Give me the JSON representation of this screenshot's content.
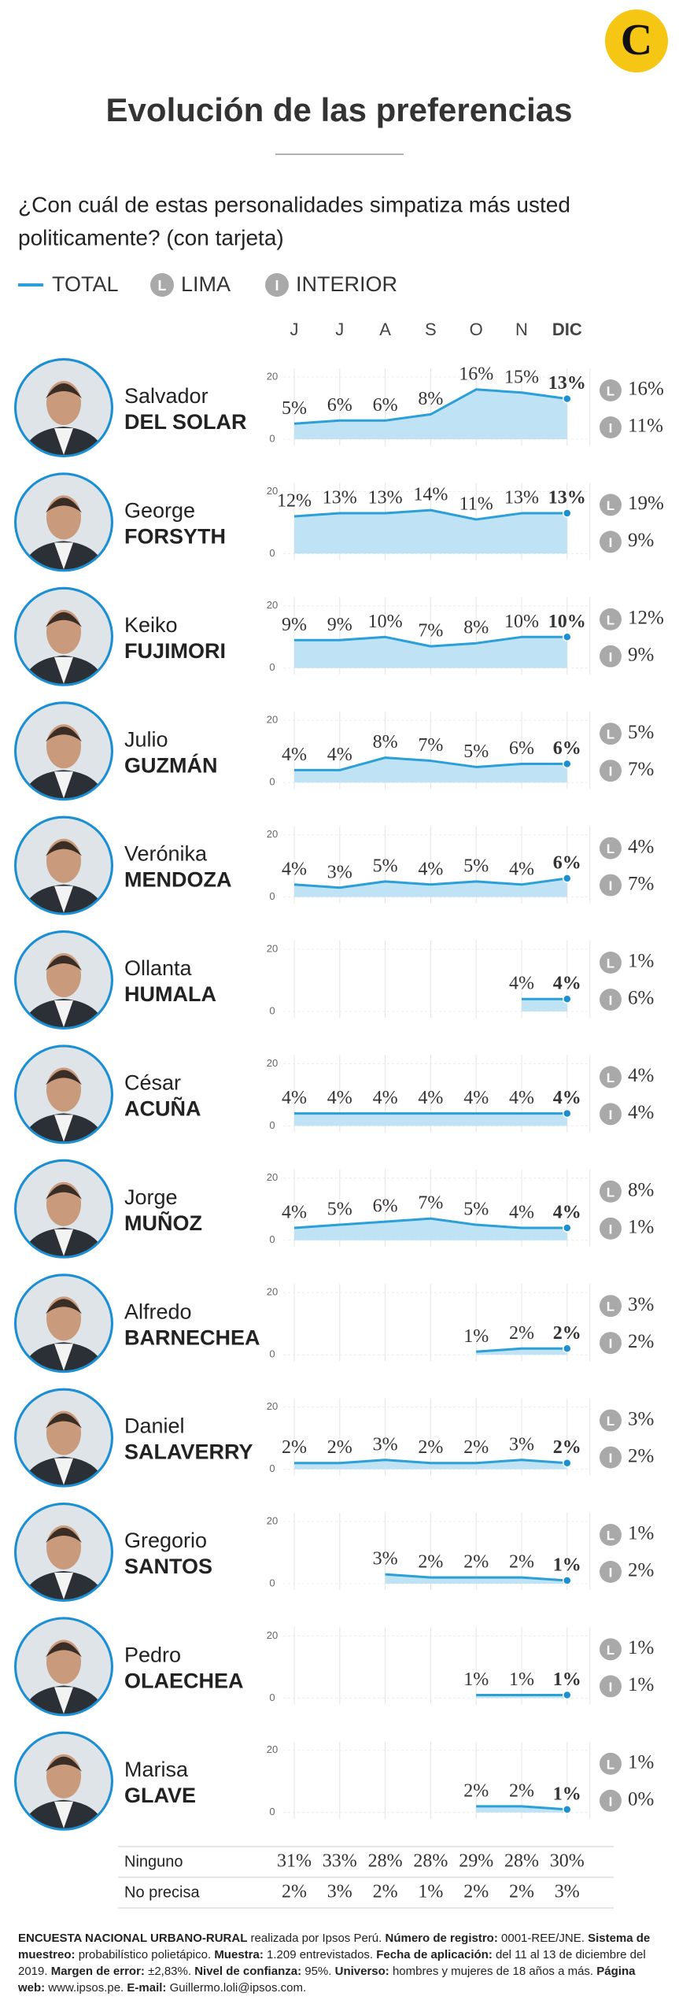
{
  "logo": "C",
  "title": "Evolución de las preferencias",
  "question": [
    "¿Con cuál de estas personalidades simpatiza más usted",
    "politicamente? (con tarjeta)"
  ],
  "legend": {
    "total": "TOTAL",
    "lima_icon": "L",
    "lima": "LIMA",
    "interior_icon": "I",
    "interior": "INTERIOR"
  },
  "months": [
    "J",
    "J",
    "A",
    "S",
    "O",
    "N",
    "DIC"
  ],
  "ylim": [
    0,
    20
  ],
  "yticks": [
    0,
    20
  ],
  "people": [
    {
      "first": "Salvador",
      "last": "DEL SOLAR",
      "values": [
        5,
        6,
        6,
        8,
        16,
        15,
        13
      ],
      "value_labels": [
        "5%",
        "6%",
        "6%",
        "8%",
        "16%",
        "15%",
        "13%"
      ],
      "lima": "16%",
      "interior": "11%"
    },
    {
      "first": "George",
      "last": "FORSYTH",
      "values": [
        12,
        13,
        13,
        14,
        11,
        13,
        13
      ],
      "value_labels": [
        "12%",
        "13%",
        "13%",
        "14%",
        "11%",
        "13%",
        "13%"
      ],
      "lima": "19%",
      "interior": "9%"
    },
    {
      "first": "Keiko",
      "last": "FUJIMORI",
      "values": [
        9,
        9,
        10,
        7,
        8,
        10,
        10
      ],
      "value_labels": [
        "9%",
        "9%",
        "10%",
        "7%",
        "8%",
        "10%",
        "10%"
      ],
      "lima": "12%",
      "interior": "9%"
    },
    {
      "first": "Julio",
      "last": "GUZMÁN",
      "values": [
        4,
        4,
        8,
        7,
        5,
        6,
        6
      ],
      "value_labels": [
        "4%",
        "4%",
        "8%",
        "7%",
        "5%",
        "6%",
        "6%"
      ],
      "lima": "5%",
      "interior": "7%"
    },
    {
      "first": "Verónika",
      "last": "MENDOZA",
      "values": [
        4,
        3,
        5,
        4,
        5,
        4,
        6
      ],
      "value_labels": [
        "4%",
        "3%",
        "5%",
        "4%",
        "5%",
        "4%",
        "6%"
      ],
      "lima": "4%",
      "interior": "7%"
    },
    {
      "first": "Ollanta",
      "last": "HUMALA",
      "values": [
        null,
        null,
        null,
        null,
        null,
        4,
        4
      ],
      "value_labels": [
        null,
        null,
        null,
        null,
        null,
        "4%",
        "4%"
      ],
      "lima": "1%",
      "interior": "6%"
    },
    {
      "first": "César",
      "last": "ACUÑA",
      "values": [
        4,
        4,
        4,
        4,
        4,
        4,
        4
      ],
      "value_labels": [
        "4%",
        "4%",
        "4%",
        "4%",
        "4%",
        "4%",
        "4%"
      ],
      "lima": "4%",
      "interior": "4%"
    },
    {
      "first": "Jorge",
      "last": "MUÑOZ",
      "values": [
        4,
        5,
        6,
        7,
        5,
        4,
        4
      ],
      "value_labels": [
        "4%",
        "5%",
        "6%",
        "7%",
        "5%",
        "4%",
        "4%"
      ],
      "lima": "8%",
      "interior": "1%"
    },
    {
      "first": "Alfredo",
      "last": "BARNECHEA",
      "values": [
        null,
        null,
        null,
        null,
        1,
        2,
        2
      ],
      "value_labels": [
        null,
        null,
        null,
        null,
        "1%",
        "2%",
        "2%"
      ],
      "lima": "3%",
      "interior": "2%"
    },
    {
      "first": "Daniel",
      "last": "SALAVERRY",
      "values": [
        2,
        2,
        3,
        2,
        2,
        3,
        2
      ],
      "value_labels": [
        "2%",
        "2%",
        "3%",
        "2%",
        "2%",
        "3%",
        "2%"
      ],
      "lima": "3%",
      "interior": "2%"
    },
    {
      "first": "Gregorio",
      "last": "SANTOS",
      "values": [
        null,
        null,
        3,
        2,
        2,
        2,
        1
      ],
      "value_labels": [
        null,
        null,
        "3%",
        "2%",
        "2%",
        "2%",
        "1%"
      ],
      "lima": "1%",
      "interior": "2%"
    },
    {
      "first": "Pedro",
      "last": "OLAECHEA",
      "values": [
        null,
        null,
        null,
        null,
        1,
        1,
        1
      ],
      "value_labels": [
        null,
        null,
        null,
        null,
        "1%",
        "1%",
        "1%"
      ],
      "lima": "1%",
      "interior": "1%"
    },
    {
      "first": "Marisa",
      "last": "GLAVE",
      "values": [
        null,
        null,
        null,
        null,
        2,
        2,
        1
      ],
      "value_labels": [
        null,
        null,
        null,
        null,
        "2%",
        "2%",
        "1%"
      ],
      "lima": "1%",
      "interior": "0%"
    }
  ],
  "table": {
    "rows": [
      {
        "label": "Ninguno",
        "values": [
          31,
          33,
          28,
          28,
          29,
          28,
          30
        ],
        "value_labels": [
          "31%",
          "33%",
          "28%",
          "28%",
          "29%",
          "28%",
          "30%"
        ]
      },
      {
        "label": "No precisa",
        "values": [
          2,
          3,
          2,
          1,
          2,
          2,
          3
        ],
        "value_labels": [
          "2%",
          "3%",
          "2%",
          "1%",
          "2%",
          "2%",
          "3%"
        ]
      }
    ]
  },
  "footer": [
    [
      "ENCUESTA NACIONAL URBANO-RURAL",
      " realizada por Ipsos Perú. "
    ],
    [
      "Número de registro:",
      " 0001-REE/JNE. "
    ],
    [
      "Sistema de muestreo:",
      " probabilístico polietápico. "
    ],
    [
      "Muestra:",
      " 1.209 entrevistados. "
    ],
    [
      "Fecha de aplicación:",
      " del 11 al 13 de diciembre del 2019. "
    ],
    [
      "Margen de error:",
      " ±2,83%. "
    ],
    [
      "Nivel de confianza:",
      " 95%. "
    ],
    [
      "Universo:",
      " hombres y mujeres de 18 años a más. "
    ],
    [
      "Página web:",
      " www.ipsos.pe. "
    ],
    [
      "E-mail:",
      " Guillermo.loli@ipsos.com."
    ]
  ]
}
